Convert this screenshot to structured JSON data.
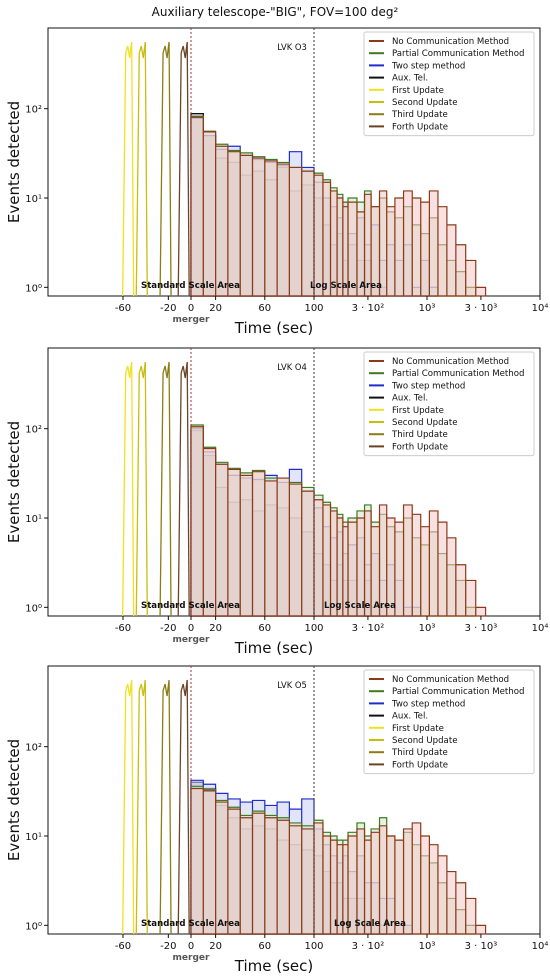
{
  "figure": {
    "title": "Auxiliary telescope-\"BIG\", FOV=100 deg²"
  },
  "chart_data": [
    {
      "type": "area",
      "panel_label": "LVK O3",
      "xlabel": "Time (sec)",
      "ylabel": "Events detected",
      "yscale": "log",
      "ylim": [
        0.8,
        800
      ],
      "xticks": [
        "-60",
        "-20",
        "0",
        "20",
        "60",
        "100",
        "3 · 10²",
        "10³",
        "3 · 10³",
        "10⁴"
      ],
      "yticks": [
        "10⁰",
        "10¹",
        "10²"
      ],
      "x_edges": [
        0,
        10,
        20,
        30,
        40,
        50,
        60,
        70,
        80,
        90,
        100,
        120,
        140,
        160,
        180,
        200,
        240,
        280,
        320,
        380,
        440,
        520,
        620,
        740,
        880,
        1050,
        1250,
        1500,
        1800,
        2200,
        2700,
        3300
      ],
      "series": [
        {
          "name": "No Communication Method",
          "color": "#8b3a1a",
          "fill": "#f6c9c9",
          "values": [
            80,
            55,
            38,
            33,
            30,
            28,
            26,
            24,
            22,
            20,
            18,
            15,
            12,
            10,
            8,
            9,
            7,
            11,
            8,
            12,
            8,
            10,
            12,
            10,
            9,
            12,
            8,
            5,
            3,
            2,
            1
          ]
        },
        {
          "name": "Partial Communication Method",
          "color": "#3e7a1e",
          "fill": "#cfe8c8",
          "values": [
            82,
            56,
            40,
            34,
            32,
            29,
            27,
            25,
            22,
            20,
            19,
            16,
            13,
            11,
            9,
            10,
            9,
            12,
            8,
            10,
            7,
            6,
            8,
            5,
            4,
            6,
            3,
            2,
            1.5,
            1,
            0
          ]
        },
        {
          "name": "Two step method",
          "color": "#1f2dcc",
          "fill": "#c8d0f0",
          "values": [
            78,
            50,
            35,
            38,
            30,
            27,
            25,
            23,
            33,
            22,
            15,
            10,
            8,
            6,
            9,
            4,
            6,
            3,
            5,
            2,
            3,
            2,
            3,
            1,
            2,
            1,
            0,
            0,
            0,
            0,
            0
          ]
        },
        {
          "name": "Aux. Tel.",
          "color": "#111111",
          "fill": "#b7a9bd",
          "values": [
            88,
            50,
            28,
            25,
            18,
            20,
            16,
            22,
            12,
            14,
            10,
            5,
            3,
            4,
            2,
            3,
            2,
            2,
            1,
            1,
            0,
            0,
            0,
            0,
            0,
            0,
            0,
            0,
            0,
            0,
            0
          ]
        }
      ],
      "updates": [
        {
          "name": "First Update",
          "color": "#f0e020",
          "x": -55
        },
        {
          "name": "Second Update",
          "color": "#c8bd10",
          "x": -43
        },
        {
          "name": "Third Update",
          "color": "#8b7d15",
          "x": -22
        },
        {
          "name": "Forth Update",
          "color": "#6b4426",
          "x": -6
        }
      ],
      "annotations": {
        "left_area": "Standard Scale Area",
        "right_area": "Log Scale Area",
        "event": "merger"
      }
    },
    {
      "type": "area",
      "panel_label": "LVK O4",
      "xlabel": "Time (sec)",
      "ylabel": "Events detected",
      "yscale": "log",
      "ylim": [
        0.8,
        800
      ],
      "xticks": [
        "-60",
        "-20",
        "0",
        "20",
        "60",
        "100",
        "3 · 10²",
        "10³",
        "3 · 10³",
        "10⁴"
      ],
      "yticks": [
        "10⁰",
        "10¹",
        "10²"
      ],
      "x_edges": [
        0,
        10,
        20,
        30,
        40,
        50,
        60,
        70,
        80,
        90,
        100,
        120,
        140,
        160,
        180,
        200,
        240,
        280,
        320,
        380,
        440,
        520,
        620,
        740,
        880,
        1050,
        1250,
        1500,
        1800,
        2200,
        2700,
        3300
      ],
      "series": [
        {
          "name": "No Communication Method",
          "color": "#8b3a1a",
          "fill": "#f6c9c9",
          "values": [
            105,
            60,
            40,
            35,
            30,
            33,
            26,
            28,
            24,
            20,
            16,
            14,
            12,
            10,
            8,
            9,
            10,
            12,
            8,
            14,
            10,
            9,
            14,
            11,
            8,
            12,
            9,
            6,
            3,
            2,
            1
          ]
        },
        {
          "name": "Partial Communication Method",
          "color": "#3e7a1e",
          "fill": "#cfe8c8",
          "values": [
            110,
            62,
            42,
            36,
            32,
            34,
            28,
            28,
            25,
            22,
            18,
            15,
            13,
            11,
            9,
            10,
            12,
            14,
            9,
            11,
            8,
            7,
            10,
            6,
            5,
            7,
            4,
            3,
            2,
            1,
            0
          ]
        },
        {
          "name": "Two step method",
          "color": "#1f2dcc",
          "fill": "#c8d0f0",
          "values": [
            100,
            55,
            40,
            30,
            28,
            27,
            30,
            25,
            35,
            20,
            13,
            8,
            6,
            7,
            4,
            5,
            6,
            3,
            4,
            2,
            3,
            2,
            1,
            1,
            0,
            0,
            0,
            0,
            0,
            0,
            0
          ]
        },
        {
          "name": "Aux. Tel.",
          "color": "#111111",
          "fill": "#b7a9bd",
          "values": [
            95,
            50,
            22,
            15,
            16,
            12,
            14,
            13,
            10,
            7,
            4,
            3,
            2,
            3,
            2,
            2,
            1,
            2,
            1,
            1,
            0,
            0,
            0,
            0,
            0,
            0,
            0,
            0,
            0,
            0,
            0
          ]
        }
      ],
      "updates": [
        {
          "name": "First Update",
          "color": "#f0e020",
          "x": -55
        },
        {
          "name": "Second Update",
          "color": "#c8bd10",
          "x": -43
        },
        {
          "name": "Third Update",
          "color": "#8b7d15",
          "x": -22
        },
        {
          "name": "Forth Update",
          "color": "#6b4426",
          "x": -6
        }
      ],
      "annotations": {
        "left_area": "Standard Scale Area",
        "right_area": "Log Scale Area",
        "event": "merger"
      }
    },
    {
      "type": "area",
      "panel_label": "LVK O5",
      "xlabel": "Time (sec)",
      "ylabel": "Events detected",
      "yscale": "log",
      "ylim": [
        0.8,
        800
      ],
      "xticks": [
        "-60",
        "-20",
        "0",
        "20",
        "60",
        "100",
        "3 · 10²",
        "10³",
        "3 · 10³",
        "10⁴"
      ],
      "yticks": [
        "10⁰",
        "10¹",
        "10²"
      ],
      "x_edges": [
        0,
        10,
        20,
        30,
        40,
        50,
        60,
        70,
        80,
        90,
        100,
        120,
        140,
        160,
        180,
        200,
        240,
        280,
        320,
        380,
        440,
        520,
        620,
        740,
        880,
        1050,
        1250,
        1500,
        1800,
        2200,
        2700,
        3300
      ],
      "series": [
        {
          "name": "No Communication Method",
          "color": "#8b3a1a",
          "fill": "#f6c9c9",
          "values": [
            34,
            32,
            24,
            20,
            16,
            18,
            16,
            15,
            13,
            12,
            14,
            10,
            9,
            8,
            8,
            10,
            12,
            9,
            11,
            13,
            10,
            9,
            12,
            14,
            10,
            8,
            6,
            4,
            3,
            2,
            1
          ]
        },
        {
          "name": "Partial Communication Method",
          "color": "#3e7a1e",
          "fill": "#cfe8c8",
          "values": [
            36,
            33,
            25,
            21,
            17,
            19,
            17,
            16,
            14,
            13,
            15,
            11,
            10,
            9,
            9,
            11,
            14,
            10,
            12,
            16,
            10,
            9,
            11,
            8,
            6,
            5,
            3,
            2,
            1.5,
            1,
            0
          ]
        },
        {
          "name": "Two step method",
          "color": "#1f2dcc",
          "fill": "#c8d0f0",
          "values": [
            42,
            38,
            30,
            26,
            24,
            25,
            22,
            24,
            20,
            26,
            12,
            8,
            6,
            5,
            6,
            4,
            6,
            3,
            3,
            2,
            2,
            1,
            1,
            0,
            0,
            0,
            0,
            0,
            0,
            0,
            0
          ]
        },
        {
          "name": "Aux. Tel.",
          "color": "#111111",
          "fill": "#b7a9bd",
          "values": [
            40,
            34,
            22,
            16,
            12,
            13,
            12,
            9,
            8,
            7,
            6,
            4,
            3,
            3,
            2,
            2,
            2,
            1,
            1,
            1,
            0,
            0,
            0,
            0,
            0,
            0,
            0,
            0,
            0,
            0,
            0
          ]
        }
      ],
      "updates": [
        {
          "name": "First Update",
          "color": "#f0e020",
          "x": -55
        },
        {
          "name": "Second Update",
          "color": "#c8bd10",
          "x": -43
        },
        {
          "name": "Third Update",
          "color": "#8b7d15",
          "x": -22
        },
        {
          "name": "Forth Update",
          "color": "#6b4426",
          "x": -6
        }
      ],
      "annotations": {
        "left_area": "Standard Scale Area",
        "right_area": "Log Scale Area",
        "event": "merger"
      }
    }
  ]
}
